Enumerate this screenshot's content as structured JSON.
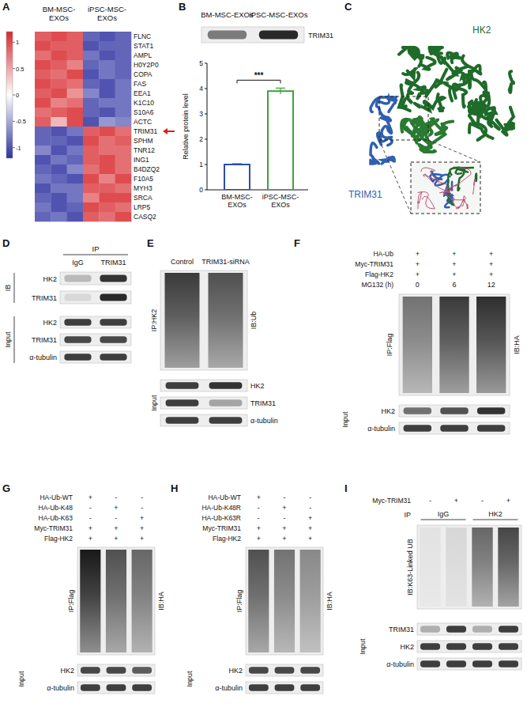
{
  "chart_data": [
    {
      "type": "heatmap",
      "groups": [
        "BM-MSC-EXOs",
        "iPSC-MSC-EXOs"
      ],
      "rows": [
        "FLNC",
        "STAT1",
        "AMPL",
        "H0Y2P0",
        "COPA",
        "FAS",
        "EEA1",
        "K1C10",
        "S10A6",
        "ACTC",
        "TRIM31",
        "SPHM",
        "TNR12",
        "ING1",
        "B4DZQ2",
        "F10A5",
        "MYH3",
        "SRCA",
        "LRP5",
        "CASQ2"
      ],
      "cells": [
        [
          0.9,
          1.0,
          0.9,
          -0.9,
          -1.0,
          -0.9
        ],
        [
          1.0,
          0.9,
          0.9,
          -1.0,
          -0.9,
          -0.9
        ],
        [
          0.8,
          1.0,
          0.9,
          -0.8,
          -1.0,
          -0.9
        ],
        [
          1.0,
          0.9,
          0.7,
          -0.9,
          -0.8,
          -0.9
        ],
        [
          0.9,
          0.8,
          1.0,
          -1.0,
          -0.8,
          -0.9
        ],
        [
          1.0,
          0.9,
          0.8,
          -0.9,
          -1.0,
          -0.8
        ],
        [
          0.9,
          1.0,
          0.6,
          -0.7,
          -1.0,
          -0.8
        ],
        [
          1.0,
          0.7,
          0.8,
          -0.9,
          -0.8,
          -0.8
        ],
        [
          0.8,
          0.9,
          1.0,
          -0.9,
          -1.0,
          -0.8
        ],
        [
          0.9,
          0.4,
          1.0,
          -1.0,
          -0.6,
          -0.7
        ],
        [
          -0.9,
          -1.0,
          -0.8,
          0.9,
          1.0,
          0.8
        ],
        [
          -0.9,
          -0.9,
          -1.0,
          1.0,
          0.8,
          0.9
        ],
        [
          -0.7,
          -1.0,
          -0.8,
          0.9,
          0.8,
          0.8
        ],
        [
          -1.0,
          -0.8,
          -0.9,
          0.9,
          1.0,
          0.8
        ],
        [
          -0.9,
          -1.0,
          -0.7,
          0.8,
          1.0,
          0.8
        ],
        [
          -0.8,
          -0.9,
          -1.0,
          1.0,
          0.7,
          1.0
        ],
        [
          -1.0,
          -0.8,
          -0.8,
          0.9,
          0.9,
          0.8
        ],
        [
          -0.9,
          -1.0,
          -0.8,
          0.7,
          1.0,
          1.0
        ],
        [
          -0.8,
          -1.0,
          -0.9,
          1.0,
          0.9,
          0.8
        ],
        [
          -0.9,
          -0.8,
          -1.0,
          0.9,
          0.8,
          1.0
        ]
      ],
      "colorbar": {
        "range": [
          -1.2,
          1.2
        ],
        "ticks": [
          1,
          0.5,
          0,
          -0.5,
          -1
        ]
      }
    },
    {
      "type": "bar",
      "categories": [
        "BM-MSC-EXOs",
        "iPSC-MSC-EXOs"
      ],
      "values": [
        1,
        3.9
      ],
      "errors": [
        0.03,
        0.12
      ],
      "colors": [
        "#2b4fa8",
        "#3ca33c"
      ],
      "ylim": [
        0,
        5
      ],
      "yticks": [
        0,
        1,
        2,
        3,
        4,
        5
      ],
      "y_label": "Relative protein level",
      "annotations": [
        "***"
      ]
    }
  ],
  "panels": {
    "A": {
      "letter": "A"
    },
    "B": {
      "letter": "B",
      "columns": [
        "BM-MSC-EXOs",
        "iPSC-MSC-EXOs"
      ],
      "rows": [
        "TRIM31"
      ]
    },
    "C": {
      "letter": "C",
      "labels": [
        "HK2",
        "TRIM31"
      ]
    },
    "D": {
      "letter": "D",
      "ip_header": "IP",
      "columns": [
        "IgG",
        "TRIM31"
      ],
      "ib_label": "IB",
      "ib_rows": [
        "HK2",
        "TRIM31"
      ],
      "input_label": "Input",
      "input_rows": [
        "HK2",
        "TRIM31",
        "α-tubulin"
      ]
    },
    "E": {
      "letter": "E",
      "columns": [
        "Control",
        "TRIM31-siRNA"
      ],
      "ip_label": "IP:HK2",
      "ib_label": "IB:Ub",
      "input_label": "Input",
      "input_rows": [
        "HK2",
        "TRIM31",
        "α-tubulin"
      ]
    },
    "F": {
      "letter": "F",
      "conditions": [
        {
          "label": "HA-Ub",
          "values": [
            "+",
            "+",
            "+"
          ]
        },
        {
          "label": "Myc-TRIM31",
          "values": [
            "+",
            "+",
            "+"
          ]
        },
        {
          "label": "Flag-HK2",
          "values": [
            "+",
            "+",
            "+"
          ]
        },
        {
          "label": "MG132 (h)",
          "values": [
            0,
            6,
            12
          ]
        }
      ],
      "ip_label": "IP:Flag",
      "ib_label": "IB:HA",
      "input_label": "Input",
      "input_rows": [
        "HK2",
        "α-tubulin"
      ]
    },
    "G": {
      "letter": "G",
      "conditions": [
        {
          "label": "HA-Ub-WT",
          "values": [
            "+",
            "-",
            "-"
          ]
        },
        {
          "label": "HA-Ub-K48",
          "values": [
            "-",
            "+",
            "-"
          ]
        },
        {
          "label": "HA-Ub-K63",
          "values": [
            "-",
            "-",
            "+"
          ]
        },
        {
          "label": "Myc-TRIM31",
          "values": [
            "+",
            "+",
            "+"
          ]
        },
        {
          "label": "Flag-HK2",
          "values": [
            "+",
            "+",
            "+"
          ]
        }
      ],
      "ip_label": "IP:Flag",
      "ib_label": "IB:HA",
      "input_label": "Input",
      "input_rows": [
        "HK2",
        "α-tubulin"
      ]
    },
    "H": {
      "letter": "H",
      "conditions": [
        {
          "label": "HA-Ub-WT",
          "values": [
            "+",
            "-",
            "-"
          ]
        },
        {
          "label": "HA-Ub-K48R",
          "values": [
            "-",
            "+",
            "-"
          ]
        },
        {
          "label": "HA-Ub-K63R",
          "values": [
            "-",
            "-",
            "+"
          ]
        },
        {
          "label": "Myc-TRIM31",
          "values": [
            "+",
            "+",
            "+"
          ]
        },
        {
          "label": "Flag-HK2",
          "values": [
            "+",
            "+",
            "+"
          ]
        }
      ],
      "ip_label": "IP:Flag",
      "ib_label": "IB:HA",
      "input_label": "Input",
      "input_rows": [
        "HK2",
        "α-tubulin"
      ]
    },
    "I": {
      "letter": "I",
      "conditions": [
        {
          "label": "Myc-TRIM31",
          "values": [
            "-",
            "+",
            "-",
            "+"
          ]
        }
      ],
      "ip_header": "IP",
      "ip_groups": [
        "IgG",
        "HK2"
      ],
      "ib_label": "IB:K63-Linked UB",
      "input_label": "Input",
      "input_rows": [
        "TRIM31",
        "HK2",
        "α-tubulin"
      ]
    }
  }
}
